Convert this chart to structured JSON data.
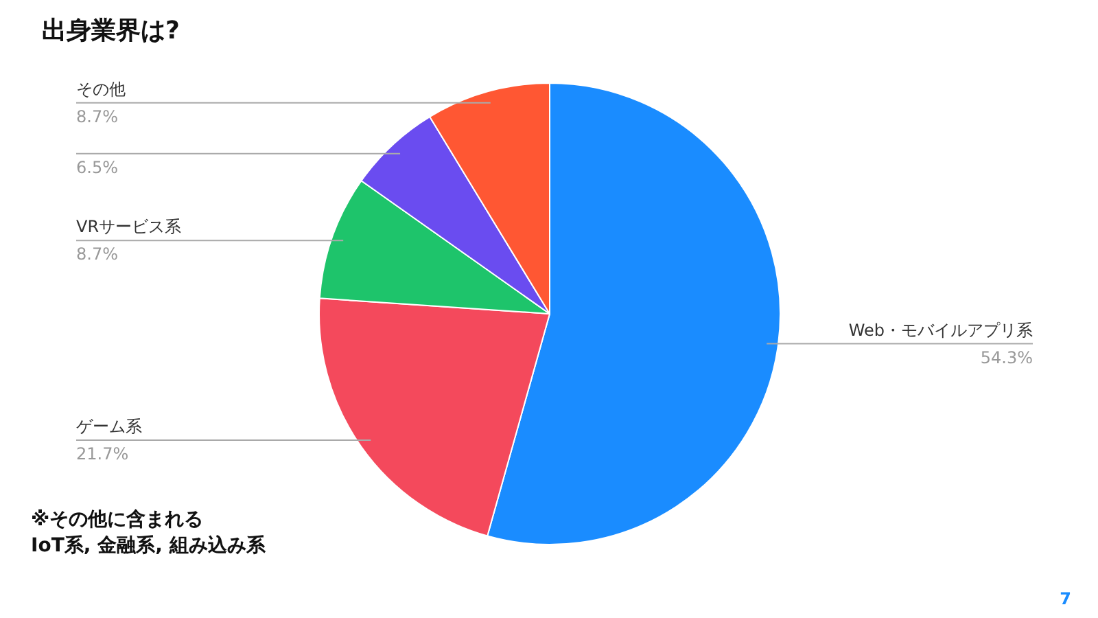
{
  "chart_data": {
    "type": "pie",
    "title": "出身業界は?",
    "categories": [
      "Web・モバイルアプリ系",
      "ゲーム系",
      "VRサービス系",
      null,
      "その他"
    ],
    "values": [
      54.3,
      21.7,
      8.7,
      6.5,
      8.7
    ],
    "value_labels": [
      "54.3%",
      "21.7%",
      "8.7%",
      "6.5%",
      "8.7%"
    ],
    "colors": [
      "#1a8cff",
      "#f4495c",
      "#1ec46b",
      "#6a4cf0",
      "#ff5733"
    ],
    "annotations": [
      "※その他に含まれる\n  IoT系, 金融系, 組み込み系",
      "7"
    ]
  }
}
